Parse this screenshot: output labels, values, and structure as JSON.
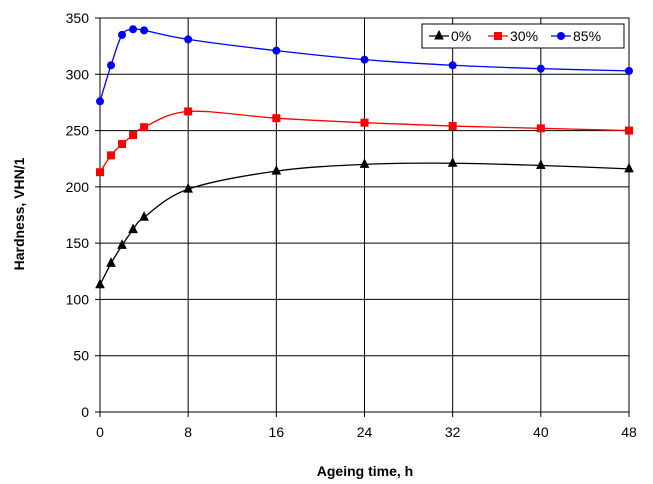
{
  "chart_data": {
    "type": "line",
    "xlabel": "Ageing time, h",
    "ylabel": "Hardness, VHN/1",
    "xlim": [
      0,
      48
    ],
    "ylim": [
      0,
      350
    ],
    "xticks": [
      "0",
      "8",
      "16",
      "24",
      "32",
      "40",
      "48"
    ],
    "yticks": [
      "0",
      "50",
      "100",
      "150",
      "200",
      "250",
      "300",
      "350"
    ],
    "grid": true,
    "legend_position": "top-right",
    "series": [
      {
        "name": "0%",
        "color": "#000000",
        "marker": "triangle",
        "x": [
          0,
          1,
          2,
          3,
          4,
          8,
          16,
          24,
          32,
          40,
          48
        ],
        "y": [
          113,
          132,
          148,
          162,
          173,
          198,
          214,
          220,
          221,
          219,
          216
        ]
      },
      {
        "name": "30%",
        "color": "#ff0000",
        "marker": "square",
        "x": [
          0,
          1,
          2,
          3,
          4,
          8,
          16,
          24,
          32,
          40,
          48
        ],
        "y": [
          213,
          228,
          238,
          246,
          253,
          267,
          261,
          257,
          254,
          252,
          250
        ]
      },
      {
        "name": "85%",
        "color": "#0000ff",
        "marker": "circle",
        "x": [
          0,
          1,
          2,
          3,
          4,
          8,
          16,
          24,
          32,
          40,
          48
        ],
        "y": [
          276,
          308,
          335,
          340,
          339,
          331,
          321,
          313,
          308,
          305,
          303
        ]
      }
    ]
  }
}
